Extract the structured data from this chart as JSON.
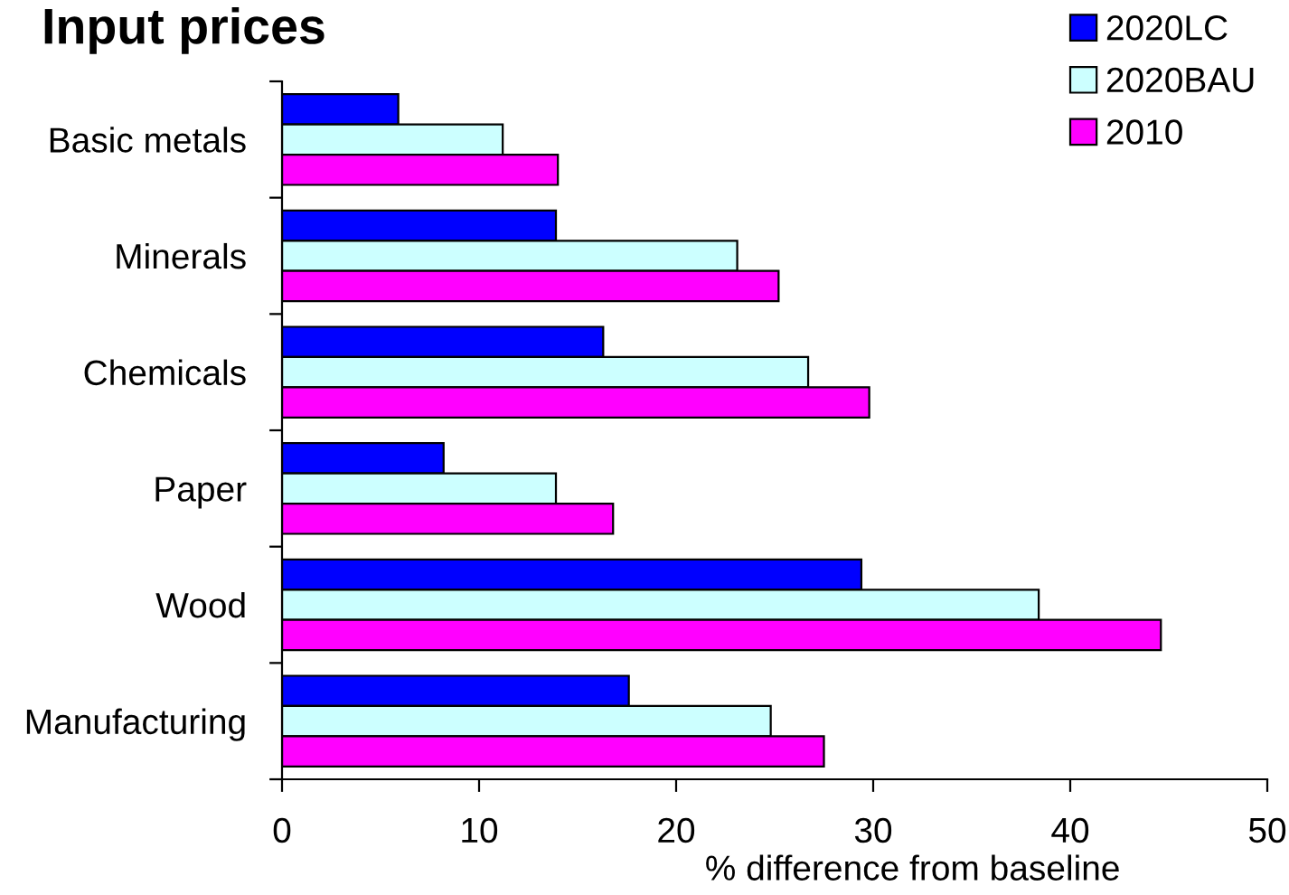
{
  "chart_data": {
    "type": "bar",
    "orientation": "horizontal",
    "title": "Input prices",
    "xlabel": "% difference from baseline",
    "categories": [
      "Basic metals",
      "Minerals",
      "Chemicals",
      "Paper",
      "Wood",
      "Manufacturing"
    ],
    "series": [
      {
        "name": "2020LC",
        "color": "#0000ff",
        "values": [
          5.9,
          13.9,
          16.3,
          8.2,
          29.4,
          17.6
        ]
      },
      {
        "name": "2020BAU",
        "color": "#ccffff",
        "values": [
          11.2,
          23.1,
          26.7,
          13.9,
          38.4,
          24.8
        ]
      },
      {
        "name": "2010",
        "color": "#ff00ff",
        "values": [
          14.0,
          25.2,
          29.8,
          16.8,
          44.6,
          27.5
        ]
      }
    ],
    "xlim": [
      0,
      50
    ],
    "xticks": [
      0,
      10,
      20,
      30,
      40,
      50
    ],
    "grid": false,
    "legend": "top right"
  }
}
